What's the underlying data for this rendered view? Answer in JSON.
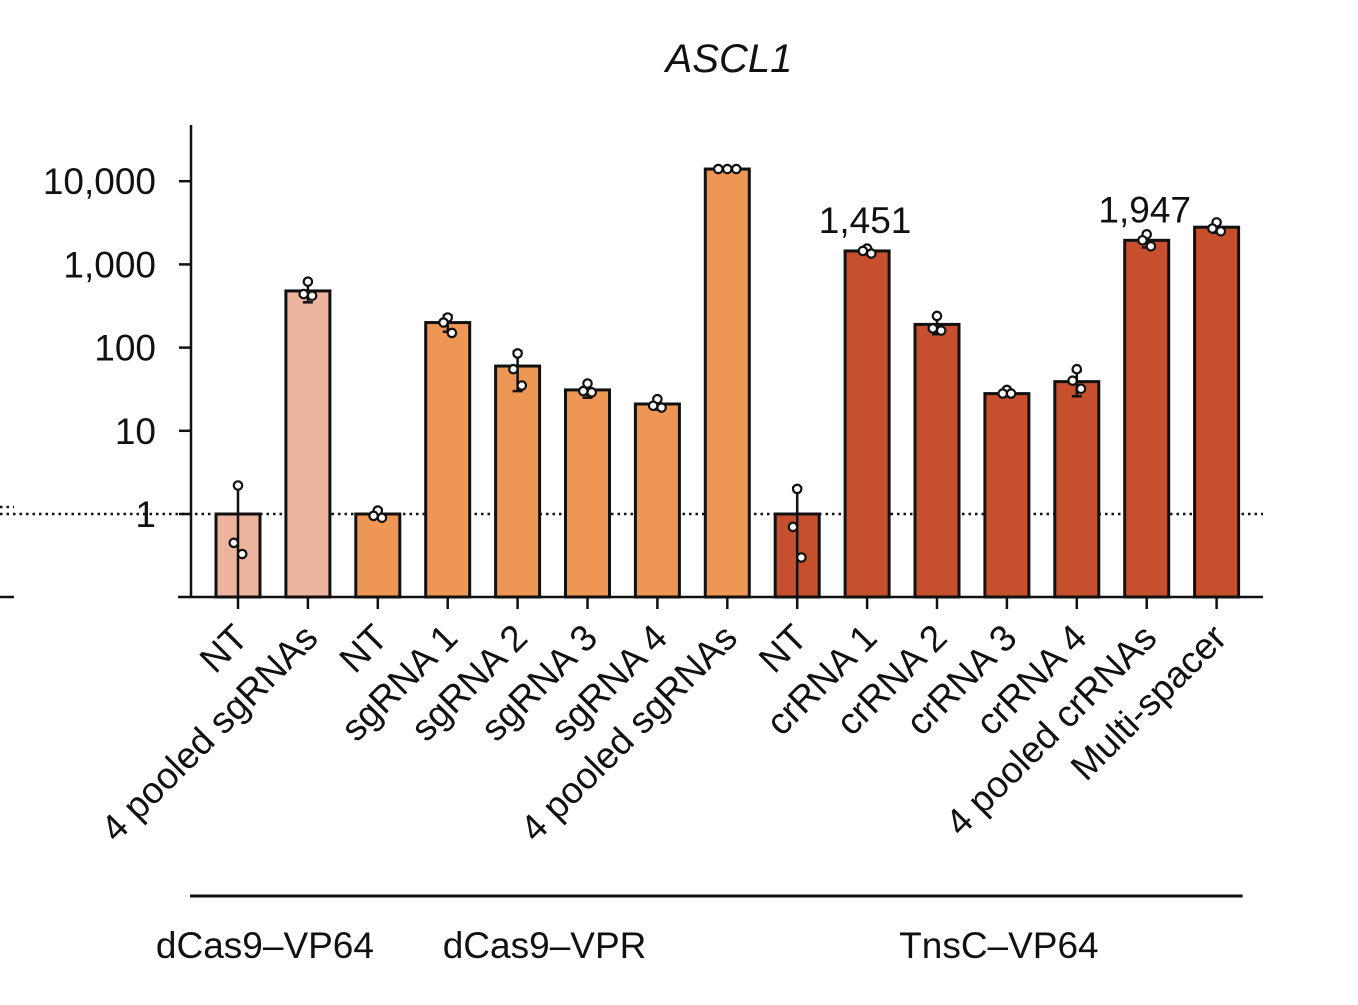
{
  "chart_data": {
    "type": "bar",
    "title": "ASCL1",
    "xlabel": "",
    "ylabel": "",
    "y_scale": "log",
    "ylim": [
      0.1,
      50000
    ],
    "yticks": [
      1,
      10,
      100,
      1000,
      10000
    ],
    "ytick_labels": [
      "1",
      "10",
      "100",
      "1,000",
      "10,000"
    ],
    "reference_line": 1,
    "grid": false,
    "legend": "none",
    "categories": [
      "NT",
      "4 pooled sgRNAs",
      "NT",
      "sgRNA 1",
      "sgRNA 2",
      "sgRNA 3",
      "sgRNA 4",
      "4 pooled sgRNAs",
      "NT",
      "crRNA 1",
      "crRNA 2",
      "crRNA 3",
      "crRNA 4",
      "4 pooled crRNAs",
      "Multi-spacer"
    ],
    "values": [
      1,
      480,
      1,
      200,
      60,
      31,
      21,
      14000,
      1,
      1451,
      190,
      28,
      39,
      1947,
      2800
    ],
    "replicates": [
      [
        2.2,
        0.45,
        0.33
      ],
      [
        620,
        440,
        420
      ],
      [
        1.1,
        0.95,
        0.9
      ],
      [
        230,
        200,
        150
      ],
      [
        85,
        55,
        35
      ],
      [
        37,
        30,
        29
      ],
      [
        24,
        20,
        19
      ],
      [
        14000,
        14000,
        14000
      ],
      [
        2.0,
        0.7,
        0.3
      ],
      [
        1550,
        1450,
        1350
      ],
      [
        240,
        170,
        160
      ],
      [
        31,
        28,
        28
      ],
      [
        55,
        40,
        32
      ],
      [
        2300,
        1950,
        1650
      ],
      [
        3200,
        2700,
        2500
      ]
    ],
    "errors": [
      1.2,
      130,
      0.12,
      45,
      30,
      6,
      3,
      0,
      1.1,
      110,
      45,
      2,
      13,
      350,
      400
    ],
    "groups": [
      {
        "name": "dCas9–VP64",
        "color": "#ECB49E",
        "indices": [
          0,
          1
        ]
      },
      {
        "name": "dCas9–VPR",
        "color": "#EE9653",
        "indices": [
          2,
          3,
          4,
          5,
          6,
          7
        ]
      },
      {
        "name": "TnsC–VP64",
        "color": "#C64F2D",
        "indices": [
          8,
          9,
          10,
          11,
          12,
          13,
          14
        ]
      }
    ],
    "annotations": [
      {
        "bar_index": 9,
        "text": "1,451"
      },
      {
        "bar_index": 13,
        "text": "1,947"
      }
    ]
  }
}
